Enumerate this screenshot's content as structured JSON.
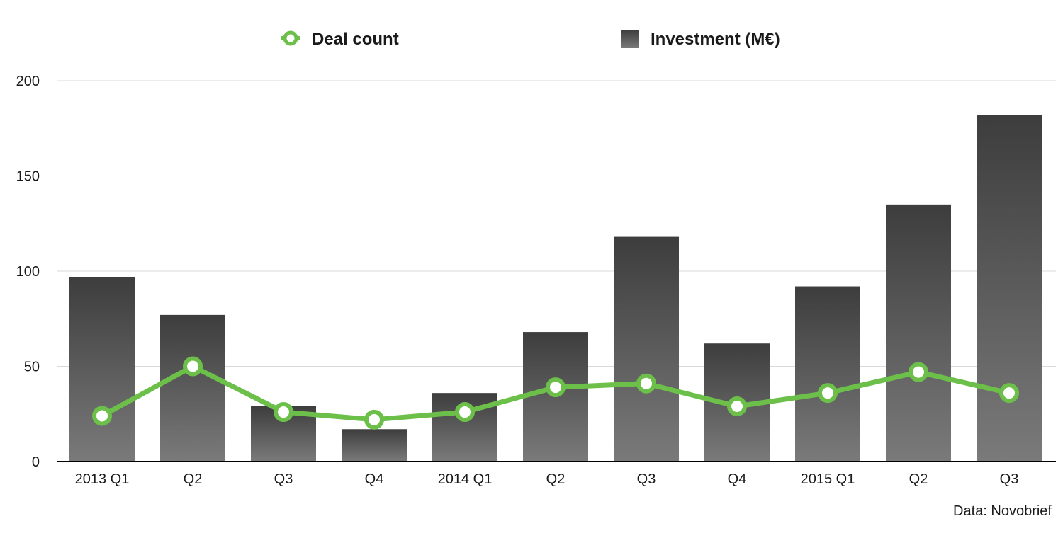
{
  "chart_data": {
    "type": "bar",
    "categories": [
      "2013 Q1",
      "Q2",
      "Q3",
      "Q4",
      "2014 Q1",
      "Q2",
      "Q3",
      "Q4",
      "2015 Q1",
      "Q2",
      "Q3"
    ],
    "series": [
      {
        "name": "Investment (M€)",
        "type": "bar",
        "values": [
          97,
          77,
          29,
          17,
          36,
          68,
          118,
          62,
          92,
          135,
          182
        ]
      },
      {
        "name": "Deal count",
        "type": "line",
        "values": [
          24,
          50,
          26,
          22,
          26,
          39,
          41,
          29,
          36,
          47,
          36
        ]
      }
    ],
    "ylim": [
      0,
      200
    ],
    "yticks": [
      0,
      50,
      100,
      150,
      200
    ],
    "grid": true,
    "legend_position": "top",
    "colors": {
      "bar_top": "#3d3d3d",
      "bar_bottom": "#7a7a7a",
      "line": "#6cc04a",
      "marker_fill": "#ffffff",
      "grid": "#d9d9d9",
      "axis": "#000000"
    }
  },
  "source_note": "Data: Novobrief"
}
